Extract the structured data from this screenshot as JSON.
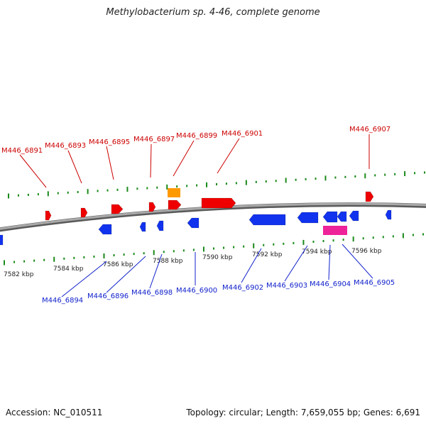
{
  "title": "Methylobacterium sp. 4-46, complete genome",
  "footer": {
    "accession": "Accession: NC_010511",
    "summary": "Topology: circular; Length: 7,659,055 bp; Genes: 6,691"
  },
  "colors": {
    "forward_gene": "#ee0000",
    "reverse_gene": "#1133ee",
    "forward_label": "#cc0000",
    "reverse_label": "#1122cc",
    "tick": "#1a8a1a",
    "backbone": "#888888",
    "orange_feature": "#ff9900",
    "pink_feature": "#ee2299"
  },
  "ticks": {
    "bottom_labels": [
      "7582 kbp",
      "7584 kbp",
      "7586 kbp",
      "7588 kbp",
      "7590 kbp",
      "7592 kbp",
      "7594 kbp",
      "7596 kbp"
    ]
  },
  "forward_genes": [
    {
      "label": "M446_6891"
    },
    {
      "label": "M446_6893"
    },
    {
      "label": "M446_6895"
    },
    {
      "label": "M446_6897"
    },
    {
      "label": "M446_6899"
    },
    {
      "label": "M446_6901"
    },
    {
      "label": "M446_6907"
    }
  ],
  "reverse_genes": [
    {
      "label": "M446_6894"
    },
    {
      "label": "M446_6896"
    },
    {
      "label": "M446_6898"
    },
    {
      "label": "M446_6900"
    },
    {
      "label": "M446_6902"
    },
    {
      "label": "M446_6903"
    },
    {
      "label": "M446_6904"
    },
    {
      "label": "M446_6905"
    }
  ]
}
